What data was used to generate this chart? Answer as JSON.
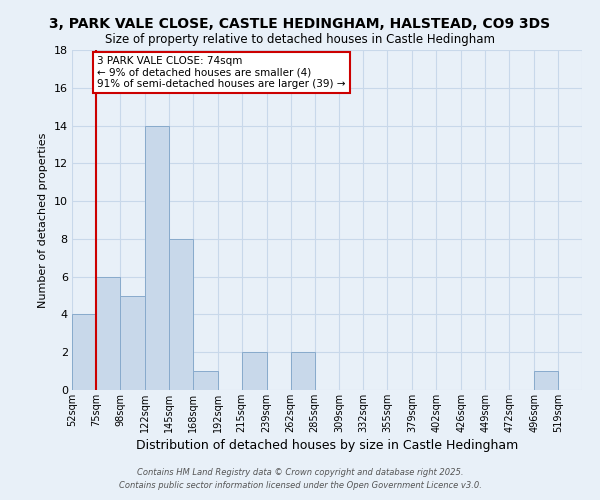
{
  "title": "3, PARK VALE CLOSE, CASTLE HEDINGHAM, HALSTEAD, CO9 3DS",
  "subtitle": "Size of property relative to detached houses in Castle Hedingham",
  "xlabel": "Distribution of detached houses by size in Castle Hedingham",
  "ylabel": "Number of detached properties",
  "bar_color": "#c8d8ea",
  "bar_edge_color": "#88aacc",
  "background_color": "#e8f0f8",
  "grid_color": "#c8d8ea",
  "bin_labels": [
    "52sqm",
    "75sqm",
    "98sqm",
    "122sqm",
    "145sqm",
    "168sqm",
    "192sqm",
    "215sqm",
    "239sqm",
    "262sqm",
    "285sqm",
    "309sqm",
    "332sqm",
    "355sqm",
    "379sqm",
    "402sqm",
    "426sqm",
    "449sqm",
    "472sqm",
    "496sqm",
    "519sqm"
  ],
  "bin_edges": [
    52,
    75,
    98,
    122,
    145,
    168,
    192,
    215,
    239,
    262,
    285,
    309,
    332,
    355,
    379,
    402,
    426,
    449,
    472,
    496,
    519,
    542
  ],
  "counts": [
    4,
    6,
    5,
    14,
    8,
    1,
    0,
    2,
    0,
    2,
    0,
    0,
    0,
    0,
    0,
    0,
    0,
    0,
    0,
    1,
    0
  ],
  "red_line_x": 75,
  "annotation_text": "3 PARK VALE CLOSE: 74sqm\n← 9% of detached houses are smaller (4)\n91% of semi-detached houses are larger (39) →",
  "annotation_box_color": "#ffffff",
  "annotation_border_color": "#cc0000",
  "ylim": [
    0,
    18
  ],
  "yticks": [
    0,
    2,
    4,
    6,
    8,
    10,
    12,
    14,
    16,
    18
  ],
  "footer_line1": "Contains HM Land Registry data © Crown copyright and database right 2025.",
  "footer_line2": "Contains public sector information licensed under the Open Government Licence v3.0."
}
